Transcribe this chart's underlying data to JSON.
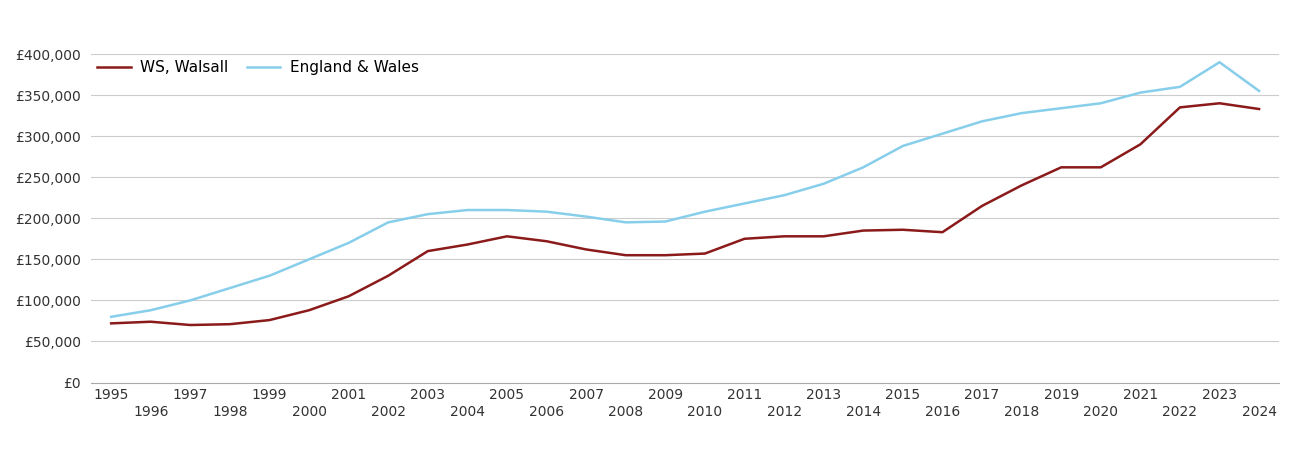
{
  "walsall_years": [
    1995,
    1996,
    1997,
    1998,
    1999,
    2000,
    2001,
    2002,
    2003,
    2004,
    2005,
    2006,
    2007,
    2008,
    2009,
    2010,
    2011,
    2012,
    2013,
    2014,
    2015,
    2016,
    2017,
    2018,
    2019,
    2020,
    2021,
    2022,
    2023,
    2024
  ],
  "walsall_values": [
    72000,
    74000,
    70000,
    71000,
    76000,
    88000,
    105000,
    130000,
    160000,
    168000,
    178000,
    172000,
    162000,
    155000,
    155000,
    157000,
    175000,
    178000,
    178000,
    185000,
    186000,
    183000,
    215000,
    240000,
    262000,
    262000,
    290000,
    335000,
    340000,
    333000
  ],
  "england_years": [
    1995,
    1996,
    1997,
    1998,
    1999,
    2000,
    2001,
    2002,
    2003,
    2004,
    2005,
    2006,
    2007,
    2008,
    2009,
    2010,
    2011,
    2012,
    2013,
    2014,
    2015,
    2016,
    2017,
    2018,
    2019,
    2020,
    2021,
    2022,
    2023,
    2024
  ],
  "england_values": [
    80000,
    88000,
    100000,
    115000,
    130000,
    150000,
    170000,
    195000,
    205000,
    210000,
    210000,
    208000,
    202000,
    195000,
    196000,
    208000,
    218000,
    228000,
    242000,
    262000,
    288000,
    303000,
    318000,
    328000,
    334000,
    340000,
    353000,
    360000,
    390000,
    355000
  ],
  "walsall_color": "#8b1a1a",
  "england_color": "#87ceeb",
  "walsall_label": "WS, Walsall",
  "england_label": "England & Wales",
  "ylim": [
    0,
    400000
  ],
  "yticks": [
    0,
    50000,
    100000,
    150000,
    200000,
    250000,
    300000,
    350000,
    400000
  ],
  "xlim": [
    1994.5,
    2024.5
  ],
  "grid_color": "#cccccc",
  "bg_color": "#ffffff",
  "line_width": 1.8,
  "legend_fontsize": 11,
  "tick_fontsize": 10
}
